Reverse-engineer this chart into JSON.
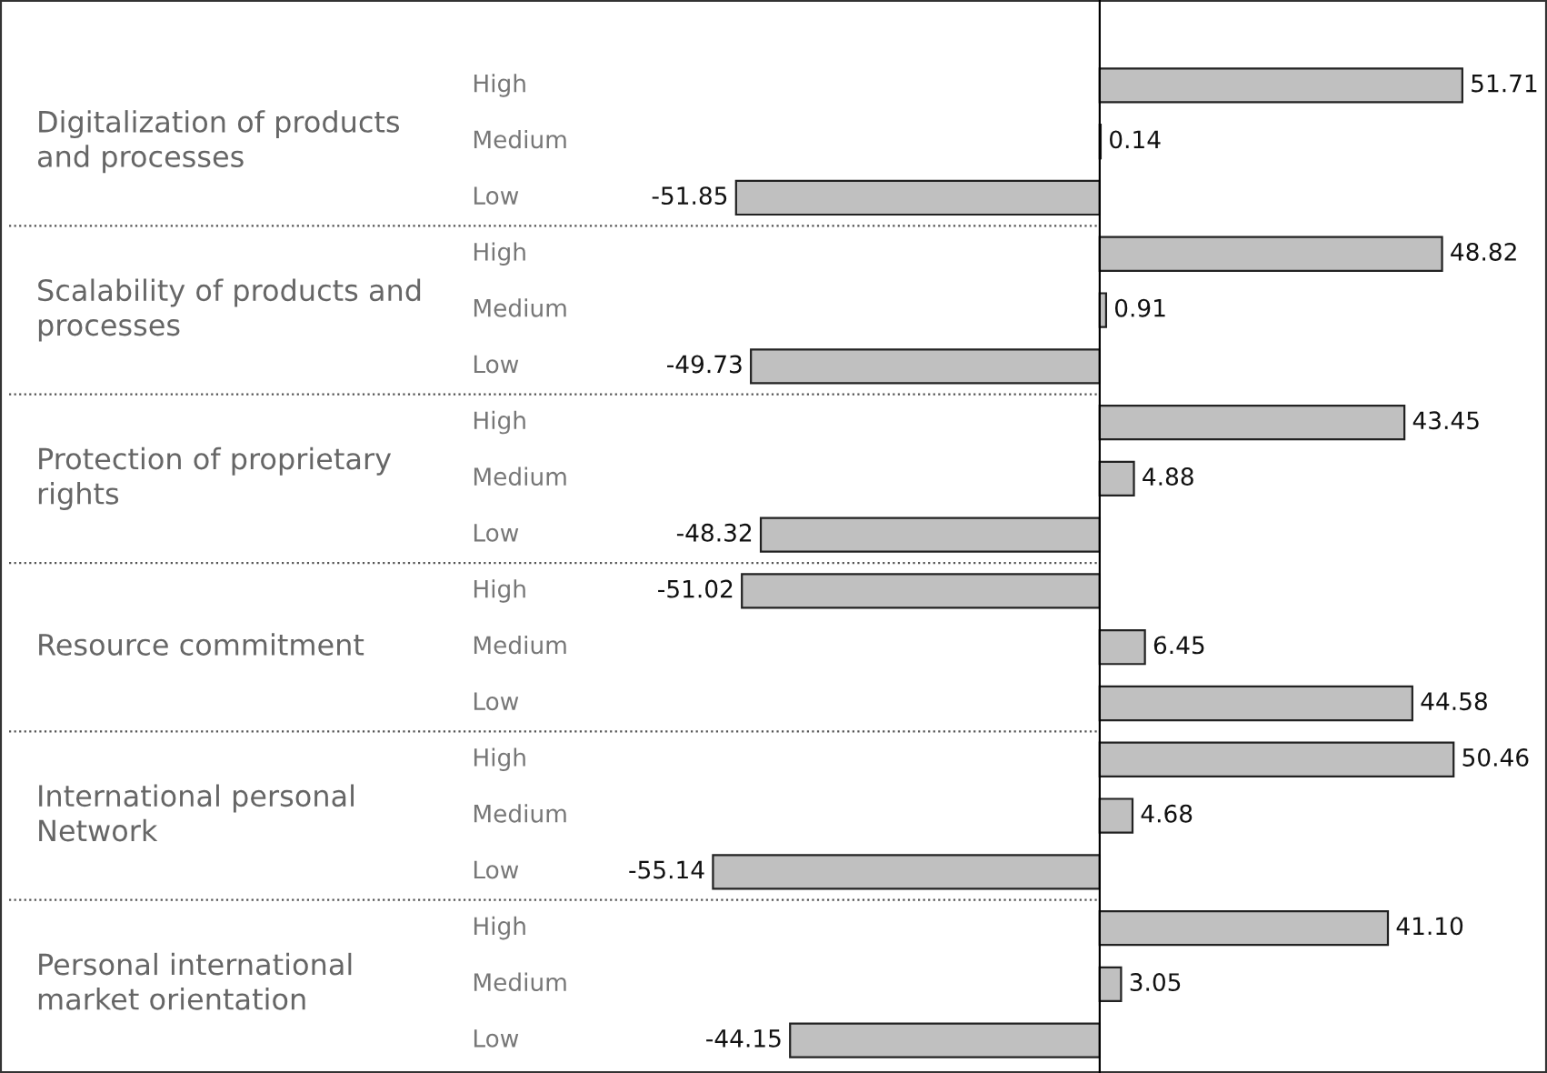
{
  "chart_data": {
    "type": "bar",
    "orientation": "horizontal",
    "categories": [
      "High",
      "Medium",
      "Low",
      "High",
      "Medium",
      "Low",
      "High",
      "Medium",
      "Low",
      "High",
      "Medium",
      "Low",
      "High",
      "Medium",
      "Low",
      "High",
      "Medium",
      "Low"
    ],
    "series": [
      {
        "color": "#c0c0c0",
        "values": [
          51.71,
          0.14,
          -51.85,
          48.82,
          0.91,
          -49.73,
          43.45,
          4.88,
          -48.32,
          -51.02,
          6.45,
          44.58,
          50.46,
          4.68,
          -55.14,
          41.1,
          3.05,
          -44.15
        ],
        "value_labels": [
          "51.71",
          "0.14",
          "-51.85",
          "48.82",
          "0.91",
          "-49.73",
          "43.45",
          "4.88",
          "-48.32",
          "-51.02",
          "6.45",
          "44.58",
          "50.46",
          "4.68",
          "-55.14",
          "41.10",
          "3.05",
          "-44.15"
        ]
      }
    ],
    "annotations": [
      "Digitalization of products\nand processes",
      "Scalability of products and\nprocesses",
      "Protection of proprietary\nrights",
      "Resource commitment",
      "International personal\nNetwork",
      "Personal international\nmarket orientation"
    ],
    "legend": false
  }
}
